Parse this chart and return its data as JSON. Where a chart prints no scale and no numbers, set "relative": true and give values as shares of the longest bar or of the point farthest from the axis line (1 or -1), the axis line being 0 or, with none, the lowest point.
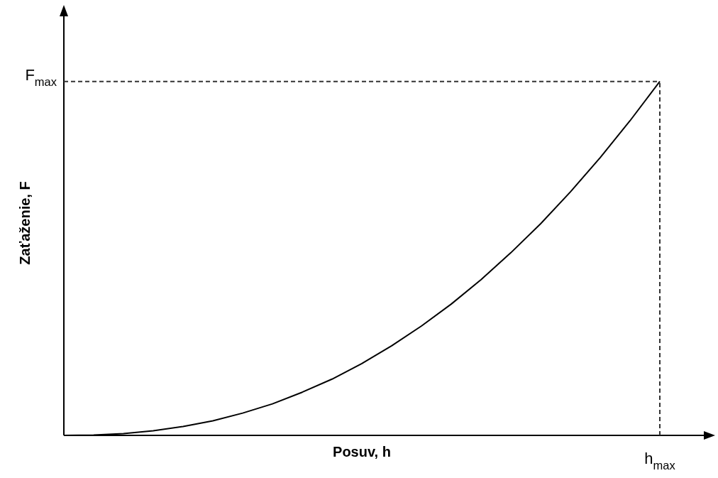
{
  "chart_data": {
    "type": "line",
    "xlabel": "Posuv, h",
    "ylabel": "Zaťaženie, F",
    "relative": true,
    "categories": [
      null,
      null,
      null,
      null,
      null,
      null,
      null,
      null,
      null,
      null,
      null,
      null,
      null,
      null,
      null,
      null,
      null,
      null,
      null,
      null,
      null
    ],
    "series": [
      {
        "color": "#000000",
        "values": [
          0,
          0.001,
          0.005,
          0.013,
          0.025,
          0.041,
          0.063,
          0.089,
          0.122,
          0.159,
          0.203,
          0.253,
          0.309,
          0.371,
          0.44,
          0.516,
          0.598,
          0.688,
          0.785,
          0.889,
          1
        ]
      }
    ],
    "annotations": [
      "h$_{max}$"
    ],
    "ref_lines": [
      {
        "axis": "y",
        "value": 1,
        "label": "F$_{max}$",
        "line_style": "dashed",
        "color": "#333333"
      }
    ],
    "line_style": "solid"
  }
}
